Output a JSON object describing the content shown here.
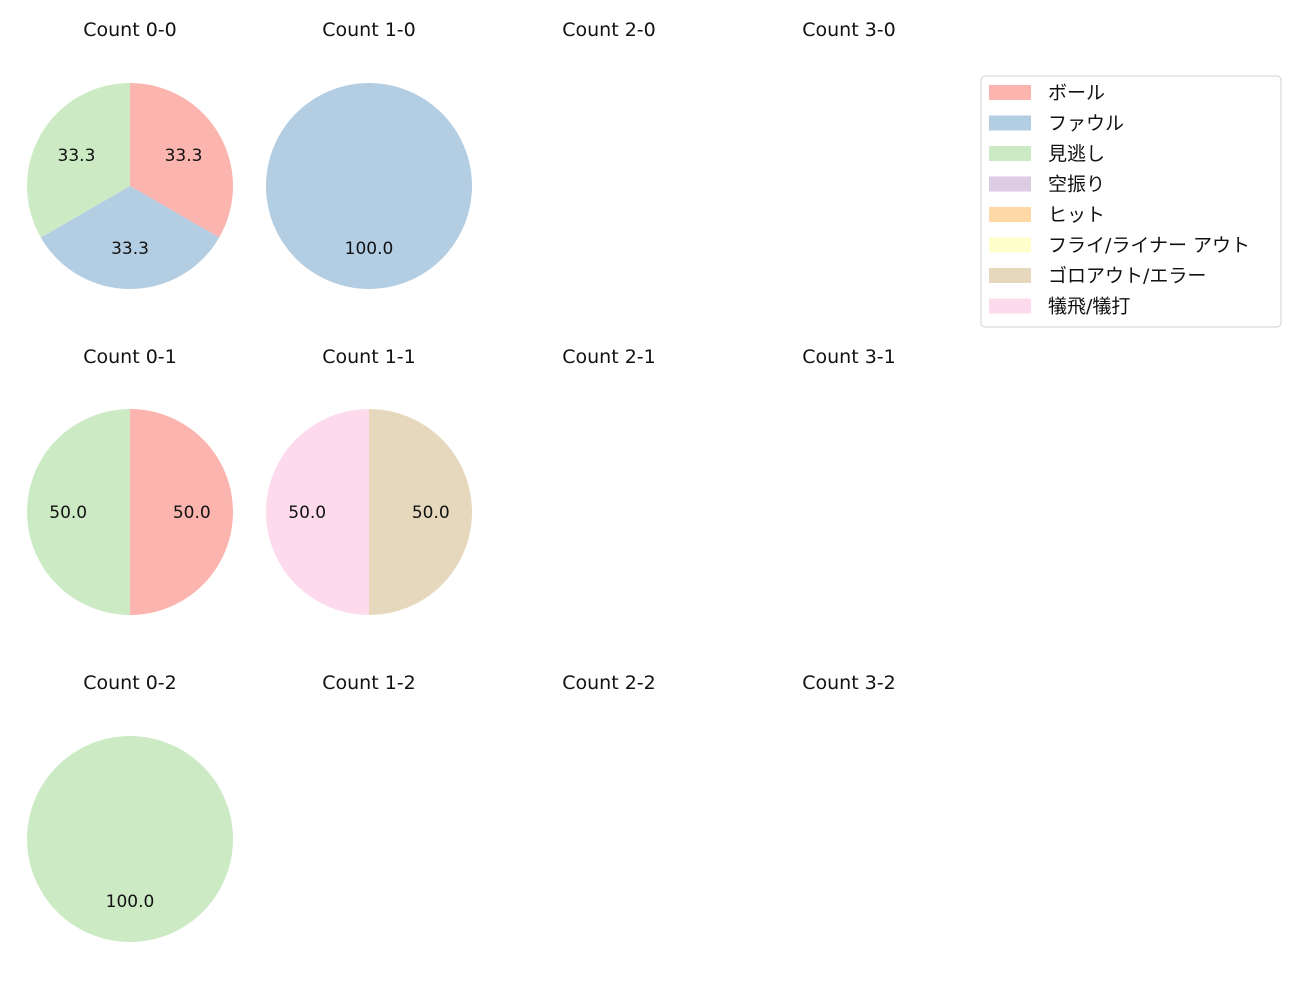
{
  "legend": {
    "placement": "top-right",
    "entries": [
      {
        "label": "ボール",
        "color": "#fbb4ae"
      },
      {
        "label": "ファウル",
        "color": "#b3cde3"
      },
      {
        "label": "見逃し",
        "color": "#ccebc5"
      },
      {
        "label": "空振り",
        "color": "#decbe4"
      },
      {
        "label": "ヒット",
        "color": "#fed9a6"
      },
      {
        "label": "フライ/ライナー アウト",
        "color": "#ffffcc"
      },
      {
        "label": "ゴロアウト/エラー",
        "color": "#e5d8bd"
      },
      {
        "label": "犠飛/犠打",
        "color": "#fddaec"
      }
    ]
  },
  "chart_data": [
    {
      "type": "pie",
      "title": "Count 0-0",
      "slices": [
        {
          "category": "ボール",
          "value": 33.3
        },
        {
          "category": "ファウル",
          "value": 33.3
        },
        {
          "category": "見逃し",
          "value": 33.3
        }
      ]
    },
    {
      "type": "pie",
      "title": "Count 1-0",
      "slices": [
        {
          "category": "ファウル",
          "value": 100.0
        }
      ]
    },
    {
      "type": "pie",
      "title": "Count 2-0",
      "slices": []
    },
    {
      "type": "pie",
      "title": "Count 3-0",
      "slices": []
    },
    {
      "type": "pie",
      "title": "Count 0-1",
      "slices": [
        {
          "category": "ボール",
          "value": 50.0
        },
        {
          "category": "見逃し",
          "value": 50.0
        }
      ]
    },
    {
      "type": "pie",
      "title": "Count 1-1",
      "slices": [
        {
          "category": "ゴロアウト/エラー",
          "value": 50.0
        },
        {
          "category": "犠飛/犠打",
          "value": 50.0
        }
      ]
    },
    {
      "type": "pie",
      "title": "Count 2-1",
      "slices": []
    },
    {
      "type": "pie",
      "title": "Count 3-1",
      "slices": []
    },
    {
      "type": "pie",
      "title": "Count 0-2",
      "slices": [
        {
          "category": "見逃し",
          "value": 100.0
        }
      ]
    },
    {
      "type": "pie",
      "title": "Count 1-2",
      "slices": []
    },
    {
      "type": "pie",
      "title": "Count 2-2",
      "slices": []
    },
    {
      "type": "pie",
      "title": "Count 3-2",
      "slices": []
    }
  ]
}
